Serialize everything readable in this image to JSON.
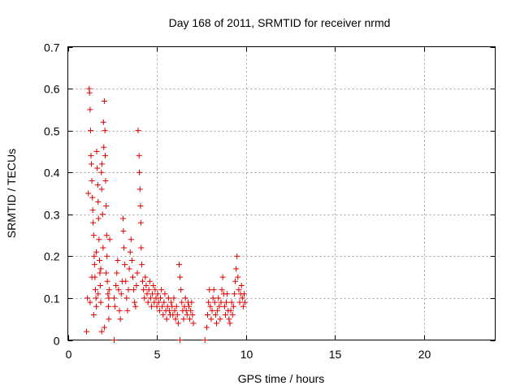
{
  "chart_data": {
    "type": "scatter",
    "title": "Day 168 of 2011, SRMTID for receiver nrmd",
    "xlabel": "GPS time / hours",
    "ylabel": "SRMTID / TECUs",
    "xlim": [
      0,
      24
    ],
    "ylim": [
      0,
      0.7
    ],
    "x_ticks": [
      0,
      5,
      10,
      15,
      20
    ],
    "x_tick_labels": [
      "0",
      "5",
      "10",
      "15",
      "20"
    ],
    "y_ticks": [
      0,
      0.1,
      0.2,
      0.3,
      0.4,
      0.5,
      0.6,
      0.7
    ],
    "y_tick_labels": [
      "0",
      "0.1",
      "0.2",
      "0.3",
      "0.4",
      "0.5",
      "0.6",
      "0.7"
    ],
    "grid": true,
    "marker": "plus",
    "color": "#e00000",
    "series": [
      {
        "name": "SRMTID",
        "points": [
          [
            1.05,
            0.02
          ],
          [
            1.1,
            0.1
          ],
          [
            1.15,
            0.35
          ],
          [
            1.2,
            0.6
          ],
          [
            1.22,
            0.59
          ],
          [
            1.25,
            0.55
          ],
          [
            1.28,
            0.5
          ],
          [
            1.3,
            0.44
          ],
          [
            1.32,
            0.42
          ],
          [
            1.35,
            0.38
          ],
          [
            1.38,
            0.34
          ],
          [
            1.4,
            0.31
          ],
          [
            1.42,
            0.28
          ],
          [
            1.45,
            0.25
          ],
          [
            1.48,
            0.2
          ],
          [
            1.5,
            0.18
          ],
          [
            1.52,
            0.15
          ],
          [
            1.55,
            0.12
          ],
          [
            1.58,
            0.1
          ],
          [
            1.6,
            0.08
          ],
          [
            1.62,
            0.45
          ],
          [
            1.65,
            0.41
          ],
          [
            1.68,
            0.37
          ],
          [
            1.7,
            0.33
          ],
          [
            1.72,
            0.29
          ],
          [
            1.75,
            0.24
          ],
          [
            1.78,
            0.19
          ],
          [
            1.8,
            0.16
          ],
          [
            1.82,
            0.13
          ],
          [
            1.85,
            0.09
          ],
          [
            1.88,
            0.4
          ],
          [
            1.9,
            0.36
          ],
          [
            1.92,
            0.42
          ],
          [
            1.95,
            0.3
          ],
          [
            1.98,
            0.22
          ],
          [
            2.0,
            0.52
          ],
          [
            2.02,
            0.46
          ],
          [
            2.05,
            0.57
          ],
          [
            2.08,
            0.5
          ],
          [
            2.1,
            0.44
          ],
          [
            2.12,
            0.38
          ],
          [
            2.15,
            0.32
          ],
          [
            2.18,
            0.25
          ],
          [
            2.2,
            0.2
          ],
          [
            2.22,
            0.14
          ],
          [
            2.25,
            0.11
          ],
          [
            2.28,
            0.08
          ],
          [
            2.3,
            0.05
          ],
          [
            2.32,
            0.12
          ],
          [
            2.35,
            0.24
          ],
          [
            1.25,
            0.09
          ],
          [
            1.45,
            0.06
          ],
          [
            1.7,
            0.11
          ],
          [
            1.9,
            0.02
          ],
          [
            2.05,
            0.03
          ],
          [
            1.35,
            0.15
          ],
          [
            1.6,
            0.21
          ],
          [
            1.85,
            0.17
          ],
          [
            2.15,
            0.16
          ],
          [
            2.3,
            0.1
          ],
          [
            2.6,
            0.1
          ],
          [
            2.65,
            0.08
          ],
          [
            2.7,
            0.13
          ],
          [
            2.75,
            0.16
          ],
          [
            2.8,
            0.19
          ],
          [
            2.85,
            0.12
          ],
          [
            2.9,
            0.07
          ],
          [
            2.95,
            0.05
          ],
          [
            3.0,
            0.11
          ],
          [
            3.05,
            0.14
          ],
          [
            3.1,
            0.29
          ],
          [
            3.12,
            0.26
          ],
          [
            3.15,
            0.22
          ],
          [
            3.2,
            0.18
          ],
          [
            3.25,
            0.14
          ],
          [
            3.3,
            0.1
          ],
          [
            3.35,
            0.07
          ],
          [
            3.4,
            0.12
          ],
          [
            3.45,
            0.17
          ],
          [
            3.5,
            0.21
          ],
          [
            3.55,
            0.24
          ],
          [
            3.6,
            0.19
          ],
          [
            3.65,
            0.15
          ],
          [
            3.7,
            0.12
          ],
          [
            3.75,
            0.09
          ],
          [
            3.8,
            0.08
          ],
          [
            3.85,
            0.13
          ],
          [
            3.9,
            0.16
          ],
          [
            3.95,
            0.5
          ],
          [
            4.0,
            0.44
          ],
          [
            4.02,
            0.4
          ],
          [
            4.05,
            0.36
          ],
          [
            4.08,
            0.32
          ],
          [
            4.1,
            0.28
          ],
          [
            4.12,
            0.22
          ],
          [
            4.15,
            0.18
          ],
          [
            4.2,
            0.14
          ],
          [
            4.25,
            0.12
          ],
          [
            4.3,
            0.1
          ],
          [
            4.35,
            0.15
          ],
          [
            4.4,
            0.13
          ],
          [
            4.45,
            0.11
          ],
          [
            4.5,
            0.09
          ],
          [
            4.55,
            0.12
          ],
          [
            4.6,
            0.14
          ],
          [
            4.65,
            0.1
          ],
          [
            4.7,
            0.08
          ],
          [
            4.75,
            0.11
          ],
          [
            4.8,
            0.13
          ],
          [
            4.85,
            0.09
          ],
          [
            4.9,
            0.12
          ],
          [
            4.95,
            0.1
          ],
          [
            5.0,
            0.08
          ],
          [
            5.05,
            0.11
          ],
          [
            5.1,
            0.09
          ],
          [
            5.15,
            0.07
          ],
          [
            5.2,
            0.1
          ],
          [
            5.25,
            0.12
          ],
          [
            5.3,
            0.08
          ],
          [
            5.35,
            0.06
          ],
          [
            5.4,
            0.09
          ],
          [
            5.45,
            0.11
          ],
          [
            5.5,
            0.07
          ],
          [
            5.55,
            0.05
          ],
          [
            5.6,
            0.08
          ],
          [
            5.65,
            0.1
          ],
          [
            5.7,
            0.07
          ],
          [
            5.75,
            0.06
          ],
          [
            5.8,
            0.09
          ],
          [
            5.85,
            0.08
          ],
          [
            5.9,
            0.06
          ],
          [
            5.95,
            0.1
          ],
          [
            6.0,
            0.07
          ],
          [
            6.05,
            0.05
          ],
          [
            6.1,
            0.08
          ],
          [
            6.15,
            0.06
          ],
          [
            6.2,
            0.04
          ],
          [
            6.25,
            0.18
          ],
          [
            6.3,
            0.15
          ],
          [
            6.35,
            0.12
          ],
          [
            6.4,
            0.09
          ],
          [
            6.45,
            0.07
          ],
          [
            6.5,
            0.05
          ],
          [
            6.55,
            0.08
          ],
          [
            6.6,
            0.1
          ],
          [
            6.65,
            0.07
          ],
          [
            6.7,
            0.06
          ],
          [
            6.75,
            0.09
          ],
          [
            6.8,
            0.08
          ],
          [
            6.85,
            0.05
          ],
          [
            6.9,
            0.07
          ],
          [
            6.95,
            0.09
          ],
          [
            7.0,
            0.06
          ],
          [
            7.05,
            0.04
          ],
          [
            7.8,
            0.03
          ],
          [
            7.85,
            0.06
          ],
          [
            7.9,
            0.09
          ],
          [
            7.95,
            0.12
          ],
          [
            8.0,
            0.08
          ],
          [
            8.05,
            0.05
          ],
          [
            8.1,
            0.07
          ],
          [
            8.15,
            0.1
          ],
          [
            8.2,
            0.12
          ],
          [
            8.25,
            0.09
          ],
          [
            8.3,
            0.06
          ],
          [
            8.35,
            0.04
          ],
          [
            8.4,
            0.07
          ],
          [
            8.45,
            0.1
          ],
          [
            8.5,
            0.08
          ],
          [
            8.55,
            0.05
          ],
          [
            8.6,
            0.09
          ],
          [
            8.65,
            0.12
          ],
          [
            8.7,
            0.15
          ],
          [
            8.75,
            0.11
          ],
          [
            8.8,
            0.08
          ],
          [
            8.85,
            0.06
          ],
          [
            8.9,
            0.09
          ],
          [
            8.95,
            0.11
          ],
          [
            9.0,
            0.07
          ],
          [
            9.05,
            0.05
          ],
          [
            9.1,
            0.04
          ],
          [
            9.15,
            0.07
          ],
          [
            9.2,
            0.09
          ],
          [
            9.25,
            0.06
          ],
          [
            9.3,
            0.08
          ],
          [
            9.35,
            0.11
          ],
          [
            9.4,
            0.14
          ],
          [
            9.45,
            0.17
          ],
          [
            9.5,
            0.2
          ],
          [
            9.55,
            0.15
          ],
          [
            9.6,
            0.12
          ],
          [
            9.65,
            0.09
          ],
          [
            9.7,
            0.11
          ],
          [
            9.75,
            0.13
          ],
          [
            9.8,
            0.1
          ],
          [
            9.85,
            0.08
          ],
          [
            9.9,
            0.11
          ],
          [
            9.95,
            0.09
          ],
          [
            2.6,
            0.0
          ],
          [
            6.3,
            0.0
          ],
          [
            7.7,
            0.0
          ]
        ]
      }
    ]
  }
}
